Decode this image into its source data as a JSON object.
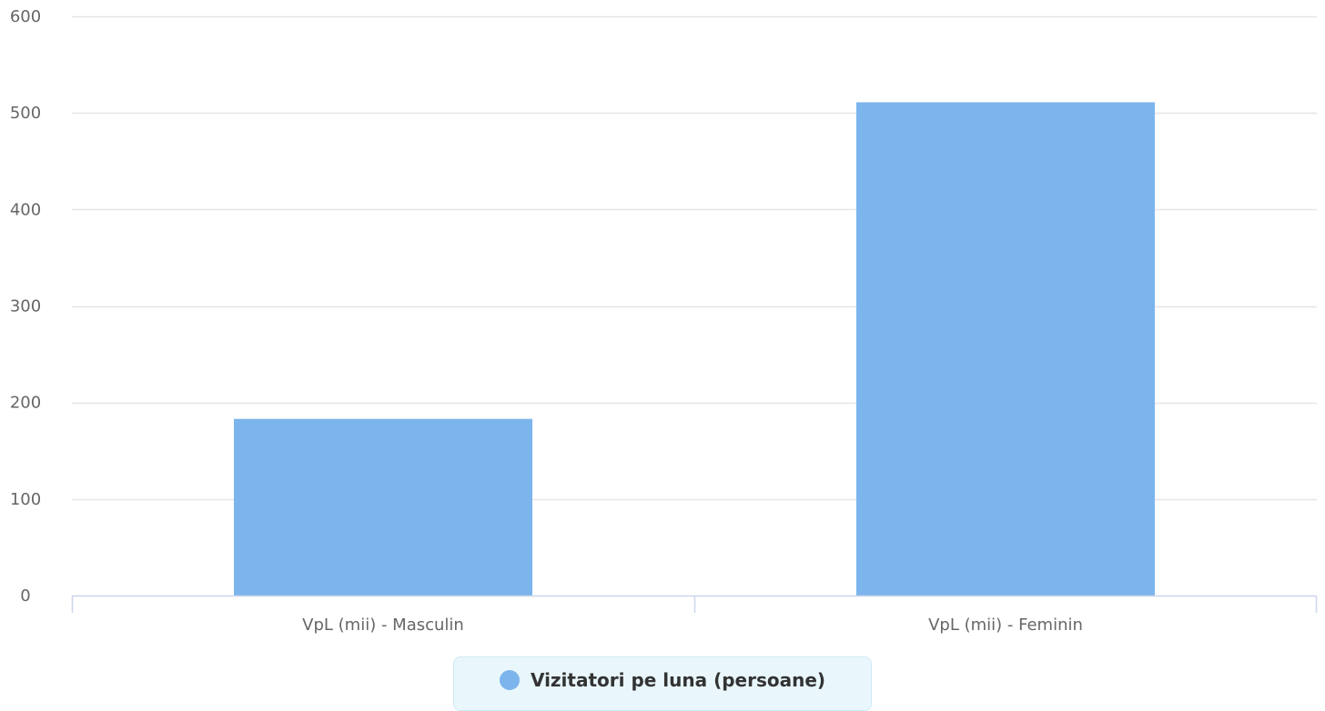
{
  "chart_data": {
    "type": "bar",
    "categories": [
      "VpL (mii) - Masculin",
      "VpL (mii) - Feminin"
    ],
    "series": [
      {
        "name": "Vizitatori pe luna (persoane)",
        "values": [
          183,
          511
        ],
        "color": "#7cb5ec"
      }
    ],
    "ylim": [
      0,
      600
    ],
    "yticks": [
      0,
      100,
      200,
      300,
      400,
      500,
      600
    ],
    "grid": true,
    "legend_position": "bottom-center"
  },
  "legend": {
    "label": "Vizitatori pe luna (persoane)"
  },
  "colors": {
    "bar": "#7cb5ec",
    "grid": "#e6e6e6",
    "axis": "#ccd6eb",
    "tick_text": "#666666"
  }
}
